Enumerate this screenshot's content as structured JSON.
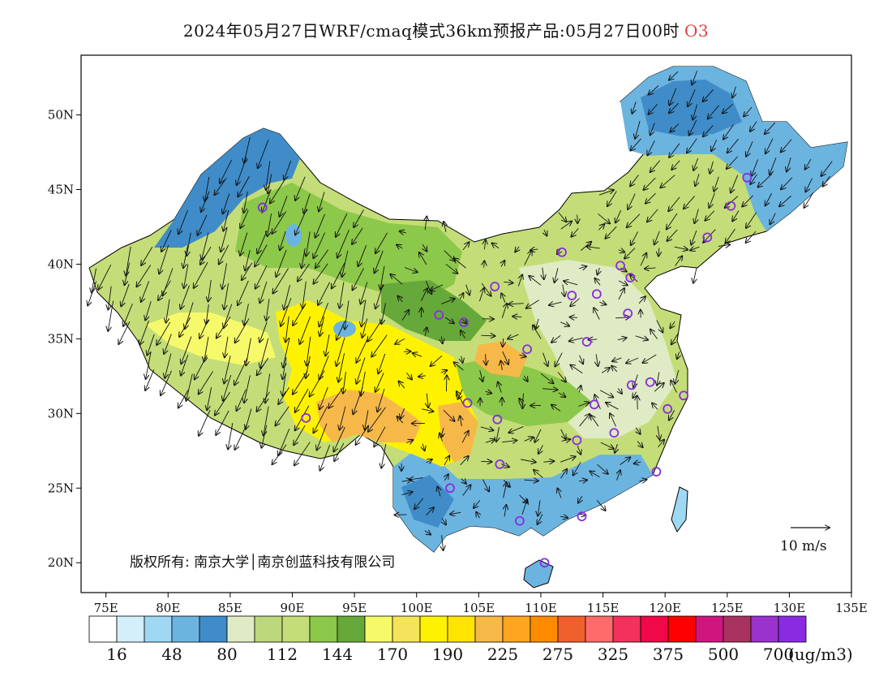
{
  "title": {
    "main": "2024年05月27日WRF/cmaq模式36km预报产品:05月27日00时",
    "pollutant": "O3"
  },
  "map": {
    "lon_range": [
      73,
      135
    ],
    "lat_range": [
      18,
      54
    ],
    "lon_ticks": [
      {
        "value": 75,
        "label": "75E"
      },
      {
        "value": 80,
        "label": "80E"
      },
      {
        "value": 85,
        "label": "85E"
      },
      {
        "value": 90,
        "label": "90E"
      },
      {
        "value": 95,
        "label": "95E"
      },
      {
        "value": 100,
        "label": "100E"
      },
      {
        "value": 105,
        "label": "105E"
      },
      {
        "value": 110,
        "label": "110E"
      },
      {
        "value": 115,
        "label": "115E"
      },
      {
        "value": 120,
        "label": "120E"
      },
      {
        "value": 125,
        "label": "125E"
      },
      {
        "value": 130,
        "label": "130E"
      },
      {
        "value": 135,
        "label": "135E"
      }
    ],
    "lat_ticks": [
      {
        "value": 20,
        "label": "20N"
      },
      {
        "value": 25,
        "label": "25N"
      },
      {
        "value": 30,
        "label": "30N"
      },
      {
        "value": 35,
        "label": "35N"
      },
      {
        "value": 40,
        "label": "40N"
      },
      {
        "value": 45,
        "label": "45N"
      },
      {
        "value": 50,
        "label": "50N"
      }
    ],
    "copyright": "版权所有: 南京大学│南京创蓝科技有限公司",
    "wind_scale_label": "10 m/s",
    "city_marker_color": "#8a2be2",
    "cities": [
      {
        "lon": 87.6,
        "lat": 43.8
      },
      {
        "lon": 91.1,
        "lat": 29.7
      },
      {
        "lon": 101.8,
        "lat": 36.6
      },
      {
        "lon": 103.8,
        "lat": 36.1
      },
      {
        "lon": 106.3,
        "lat": 38.5
      },
      {
        "lon": 111.7,
        "lat": 40.8
      },
      {
        "lon": 112.5,
        "lat": 37.9
      },
      {
        "lon": 114.5,
        "lat": 38.0
      },
      {
        "lon": 116.4,
        "lat": 39.9
      },
      {
        "lon": 117.2,
        "lat": 39.1
      },
      {
        "lon": 117.0,
        "lat": 36.7
      },
      {
        "lon": 113.7,
        "lat": 34.8
      },
      {
        "lon": 108.9,
        "lat": 34.3
      },
      {
        "lon": 104.1,
        "lat": 30.7
      },
      {
        "lon": 106.5,
        "lat": 29.6
      },
      {
        "lon": 106.7,
        "lat": 26.6
      },
      {
        "lon": 102.7,
        "lat": 25.0
      },
      {
        "lon": 108.3,
        "lat": 22.8
      },
      {
        "lon": 113.3,
        "lat": 23.1
      },
      {
        "lon": 110.3,
        "lat": 20.0
      },
      {
        "lon": 112.9,
        "lat": 28.2
      },
      {
        "lon": 114.3,
        "lat": 30.6
      },
      {
        "lon": 115.9,
        "lat": 28.7
      },
      {
        "lon": 117.3,
        "lat": 31.9
      },
      {
        "lon": 118.8,
        "lat": 32.1
      },
      {
        "lon": 120.2,
        "lat": 30.3
      },
      {
        "lon": 121.5,
        "lat": 31.2
      },
      {
        "lon": 119.3,
        "lat": 26.1
      },
      {
        "lon": 123.4,
        "lat": 41.8
      },
      {
        "lon": 125.3,
        "lat": 43.9
      },
      {
        "lon": 126.6,
        "lat": 45.8
      }
    ]
  },
  "legend": {
    "unit": "(ug/m3)",
    "colors": [
      "#ffffff",
      "#d4eefa",
      "#9ed8f2",
      "#6cb4e0",
      "#3f8cc8",
      "#dfebc4",
      "#bcd77c",
      "#c4dd78",
      "#8cc84a",
      "#66a83a",
      "#f6fa6a",
      "#f4e45c",
      "#fff200",
      "#ffe400",
      "#f7b84a",
      "#ffa520",
      "#ff8c00",
      "#f0602c",
      "#ff6b6b",
      "#f4305c",
      "#f00848",
      "#ff0000",
      "#d0167e",
      "#a8325e",
      "#9a32cd",
      "#8a2be2"
    ],
    "labels": [
      "16",
      "48",
      "80",
      "112",
      "144",
      "170",
      "190",
      "225",
      "275",
      "325",
      "375",
      "500",
      "700"
    ]
  }
}
